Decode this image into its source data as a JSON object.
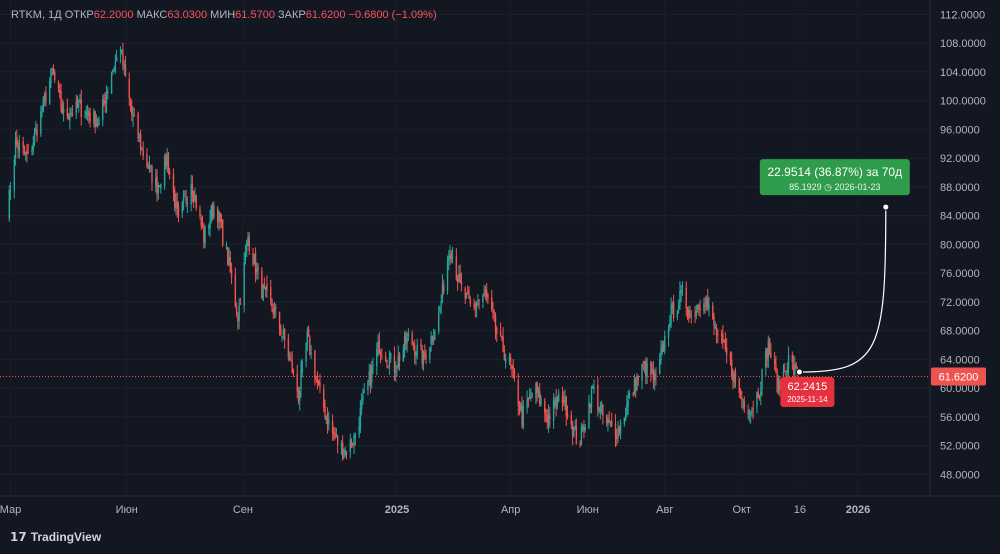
{
  "header": {
    "symbol": "RTKM",
    "interval": "1Д",
    "open_label": "ОТКР",
    "open": "62.2000",
    "high_label": "МАКС",
    "high": "63.0300",
    "low_label": "МИН",
    "low": "61.5700",
    "close_label": "ЗАКР",
    "close": "61.6200",
    "change": "−0.6800 (−1.09%)"
  },
  "branding": {
    "logo_icon": "tradingview-logo-icon",
    "name": "TradingView"
  },
  "price_axis": {
    "ticks": [
      "112.0000",
      "108.0000",
      "104.0000",
      "100.0000",
      "96.0000",
      "92.0000",
      "88.0000",
      "84.0000",
      "80.0000",
      "76.0000",
      "72.0000",
      "68.0000",
      "64.0000",
      "60.0000",
      "56.0000",
      "52.0000",
      "48.0000"
    ],
    "last_price_label": "61.6200"
  },
  "time_axis": {
    "ticks": [
      "Мар",
      "Июн",
      "Сен",
      "2025",
      "Апр",
      "Июн",
      "Авг",
      "Окт",
      "16",
      "2026"
    ]
  },
  "forecast": {
    "change_label": "22.9514 (36.87%) за 70д",
    "target_label": "85.1929 ◷ 2026-01-23",
    "start_price_label": "62.2415",
    "start_date_label": "2025-11-14"
  },
  "colors": {
    "background": "#131722",
    "up": "#26a69a",
    "down": "#ef5350",
    "forecast_up": "#2e9c4a",
    "forecast_base": "#e6323f",
    "text": "#b2b5be"
  },
  "chart_data": {
    "type": "candlestick",
    "title": "RTKM, 1Д",
    "ylim": [
      45,
      114
    ],
    "x_range": [
      "2024-02-28",
      "2026-02-27"
    ],
    "last_price": 61.62,
    "price_path": [
      {
        "date": "2024-02-28",
        "close": 85.0
      },
      {
        "date": "2024-03-05",
        "close": 94.0
      },
      {
        "date": "2024-03-15",
        "close": 92.0
      },
      {
        "date": "2024-03-25",
        "close": 98.0
      },
      {
        "date": "2024-04-03",
        "close": 104.0
      },
      {
        "date": "2024-04-12",
        "close": 98.0
      },
      {
        "date": "2024-04-25",
        "close": 99.0
      },
      {
        "date": "2024-05-10",
        "close": 97.0
      },
      {
        "date": "2024-05-20",
        "close": 104.0
      },
      {
        "date": "2024-05-27",
        "close": 107.0
      },
      {
        "date": "2024-06-05",
        "close": 98.0
      },
      {
        "date": "2024-06-15",
        "close": 92.0
      },
      {
        "date": "2024-06-25",
        "close": 88.0
      },
      {
        "date": "2024-07-03",
        "close": 92.0
      },
      {
        "date": "2024-07-12",
        "close": 83.0
      },
      {
        "date": "2024-07-22",
        "close": 89.0
      },
      {
        "date": "2024-08-01",
        "close": 81.0
      },
      {
        "date": "2024-08-10",
        "close": 86.0
      },
      {
        "date": "2024-08-20",
        "close": 78.0
      },
      {
        "date": "2024-08-28",
        "close": 70.0
      },
      {
        "date": "2024-09-05",
        "close": 81.0
      },
      {
        "date": "2024-09-15",
        "close": 74.0
      },
      {
        "date": "2024-09-25",
        "close": 71.0
      },
      {
        "date": "2024-10-05",
        "close": 66.0
      },
      {
        "date": "2024-10-15",
        "close": 59.0
      },
      {
        "date": "2024-10-22",
        "close": 67.0
      },
      {
        "date": "2024-11-01",
        "close": 59.0
      },
      {
        "date": "2024-11-10",
        "close": 54.0
      },
      {
        "date": "2024-11-20",
        "close": 51.0
      },
      {
        "date": "2024-11-28",
        "close": 53.0
      },
      {
        "date": "2024-12-08",
        "close": 60.0
      },
      {
        "date": "2024-12-18",
        "close": 66.0
      },
      {
        "date": "2024-12-30",
        "close": 63.0
      },
      {
        "date": "2025-01-10",
        "close": 67.0
      },
      {
        "date": "2025-01-22",
        "close": 64.0
      },
      {
        "date": "2025-02-03",
        "close": 70.0
      },
      {
        "date": "2025-02-12",
        "close": 80.0
      },
      {
        "date": "2025-02-20",
        "close": 74.0
      },
      {
        "date": "2025-03-01",
        "close": 71.0
      },
      {
        "date": "2025-03-12",
        "close": 73.0
      },
      {
        "date": "2025-03-22",
        "close": 67.0
      },
      {
        "date": "2025-04-01",
        "close": 63.0
      },
      {
        "date": "2025-04-10",
        "close": 56.0
      },
      {
        "date": "2025-04-20",
        "close": 60.0
      },
      {
        "date": "2025-04-30",
        "close": 56.0
      },
      {
        "date": "2025-05-12",
        "close": 59.0
      },
      {
        "date": "2025-05-25",
        "close": 52.0
      },
      {
        "date": "2025-06-05",
        "close": 60.0
      },
      {
        "date": "2025-06-15",
        "close": 55.0
      },
      {
        "date": "2025-06-25",
        "close": 54.0
      },
      {
        "date": "2025-07-05",
        "close": 59.0
      },
      {
        "date": "2025-07-15",
        "close": 63.0
      },
      {
        "date": "2025-07-25",
        "close": 61.0
      },
      {
        "date": "2025-08-05",
        "close": 70.0
      },
      {
        "date": "2025-08-15",
        "close": 73.0
      },
      {
        "date": "2025-08-22",
        "close": 70.0
      },
      {
        "date": "2025-09-01",
        "close": 73.0
      },
      {
        "date": "2025-09-10",
        "close": 68.0
      },
      {
        "date": "2025-09-20",
        "close": 64.0
      },
      {
        "date": "2025-09-30",
        "close": 59.0
      },
      {
        "date": "2025-10-08",
        "close": 57.0
      },
      {
        "date": "2025-10-15",
        "close": 60.0
      },
      {
        "date": "2025-10-22",
        "close": 66.0
      },
      {
        "date": "2025-10-30",
        "close": 60.0
      },
      {
        "date": "2025-11-07",
        "close": 64.0
      },
      {
        "date": "2025-11-14",
        "close": 61.62
      }
    ],
    "forecast_projection": {
      "start": {
        "date": "2025-11-14",
        "price": 62.2415
      },
      "end": {
        "date": "2026-01-23",
        "price": 85.1929
      },
      "change": 22.9514,
      "change_pct": 36.87,
      "days": 70
    }
  }
}
